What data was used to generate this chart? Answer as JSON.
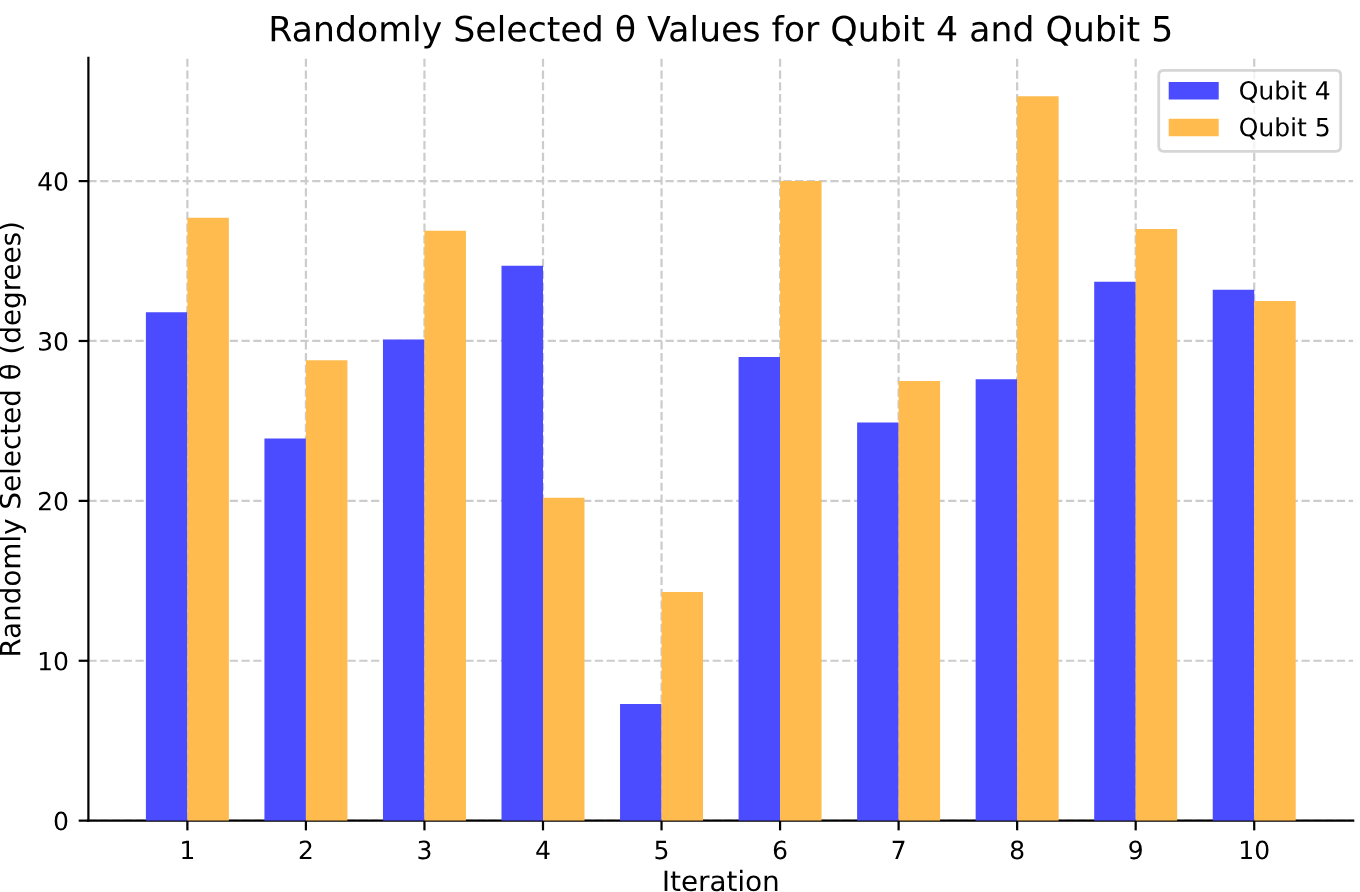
{
  "chart_data": {
    "type": "bar",
    "title": "Randomly Selected θ Values for Qubit 4 and Qubit 5",
    "xlabel": "Iteration",
    "ylabel": "Randomly Selected θ (degrees)",
    "categories": [
      "1",
      "2",
      "3",
      "4",
      "5",
      "6",
      "7",
      "8",
      "9",
      "10"
    ],
    "series": [
      {
        "name": "Qubit 4",
        "color": "#4b4bff",
        "values": [
          31.8,
          23.9,
          30.1,
          34.7,
          7.3,
          29.0,
          24.9,
          27.6,
          33.7,
          33.2
        ]
      },
      {
        "name": "Qubit 5",
        "color": "#ffbb4d",
        "values": [
          37.7,
          28.8,
          36.9,
          20.2,
          14.3,
          40.0,
          27.5,
          45.3,
          37.0,
          32.5
        ]
      }
    ],
    "ylim": [
      0,
      47.7
    ],
    "yticks": [
      0,
      10,
      20,
      30,
      40
    ],
    "grid": true,
    "legend": "top right"
  }
}
